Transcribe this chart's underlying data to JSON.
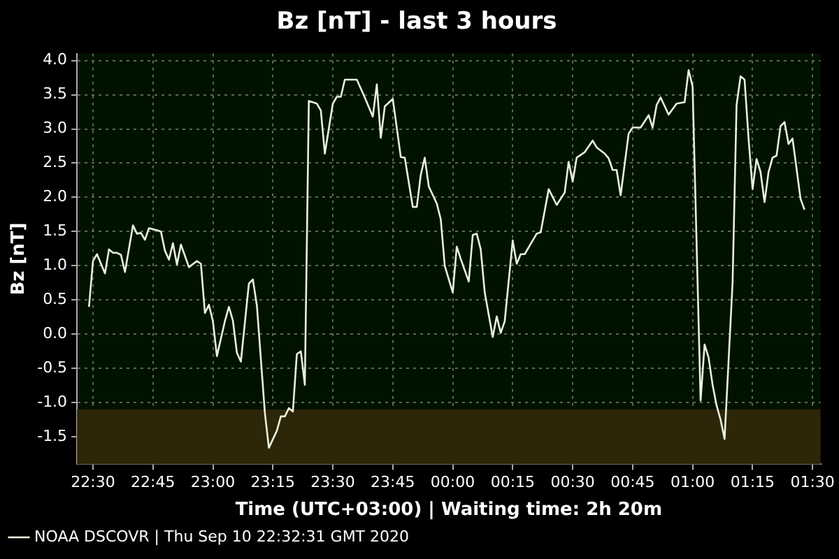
{
  "chart_data": {
    "type": "line",
    "title": "Bz [nT] - last 3 hours",
    "xlabel": "Time (UTC+03:00) | Waiting time: 2h 20m",
    "ylabel": "Bz [nT]",
    "x": [
      "2020-09-10T22:29",
      "2020-09-10T22:30",
      "2020-09-10T22:31",
      "2020-09-10T22:33",
      "2020-09-10T22:34",
      "2020-09-10T22:35",
      "2020-09-10T22:36",
      "2020-09-10T22:37",
      "2020-09-10T22:38",
      "2020-09-10T22:40",
      "2020-09-10T22:41",
      "2020-09-10T22:42",
      "2020-09-10T22:43",
      "2020-09-10T22:44",
      "2020-09-10T22:46",
      "2020-09-10T22:47",
      "2020-09-10T22:48",
      "2020-09-10T22:49",
      "2020-09-10T22:50",
      "2020-09-10T22:51",
      "2020-09-10T22:52",
      "2020-09-10T22:54",
      "2020-09-10T22:56",
      "2020-09-10T22:57",
      "2020-09-10T22:58",
      "2020-09-10T22:59",
      "2020-09-10T23:00",
      "2020-09-10T23:01",
      "2020-09-10T23:03",
      "2020-09-10T23:04",
      "2020-09-10T23:05",
      "2020-09-10T23:06",
      "2020-09-10T23:07",
      "2020-09-10T23:09",
      "2020-09-10T23:10",
      "2020-09-10T23:11",
      "2020-09-10T23:13",
      "2020-09-10T23:14",
      "2020-09-10T23:16",
      "2020-09-10T23:17",
      "2020-09-10T23:18",
      "2020-09-10T23:19",
      "2020-09-10T23:20",
      "2020-09-10T23:21",
      "2020-09-10T23:22",
      "2020-09-10T23:23",
      "2020-09-10T23:24",
      "2020-09-10T23:26",
      "2020-09-10T23:27",
      "2020-09-10T23:28",
      "2020-09-10T23:30",
      "2020-09-10T23:31",
      "2020-09-10T23:32",
      "2020-09-10T23:33",
      "2020-09-10T23:36",
      "2020-09-10T23:38",
      "2020-09-10T23:40",
      "2020-09-10T23:41",
      "2020-09-10T23:42",
      "2020-09-10T23:43",
      "2020-09-10T23:45",
      "2020-09-10T23:47",
      "2020-09-10T23:48",
      "2020-09-10T23:50",
      "2020-09-10T23:51",
      "2020-09-10T23:52",
      "2020-09-10T23:53",
      "2020-09-10T23:54",
      "2020-09-10T23:56",
      "2020-09-10T23:57",
      "2020-09-10T23:58",
      "2020-09-11T00:00",
      "2020-09-11T00:01",
      "2020-09-11T00:02",
      "2020-09-11T00:04",
      "2020-09-11T00:05",
      "2020-09-11T00:06",
      "2020-09-11T00:07",
      "2020-09-11T00:08",
      "2020-09-11T00:10",
      "2020-09-11T00:11",
      "2020-09-11T00:12",
      "2020-09-11T00:13",
      "2020-09-11T00:15",
      "2020-09-11T00:16",
      "2020-09-11T00:17",
      "2020-09-11T00:18",
      "2020-09-11T00:20",
      "2020-09-11T00:21",
      "2020-09-11T00:22",
      "2020-09-11T00:24",
      "2020-09-11T00:26",
      "2020-09-11T00:28",
      "2020-09-11T00:29",
      "2020-09-11T00:30",
      "2020-09-11T00:31",
      "2020-09-11T00:33",
      "2020-09-11T00:35",
      "2020-09-11T00:36",
      "2020-09-11T00:38",
      "2020-09-11T00:39",
      "2020-09-11T00:40",
      "2020-09-11T00:41",
      "2020-09-11T00:42",
      "2020-09-11T00:44",
      "2020-09-11T00:45",
      "2020-09-11T00:47",
      "2020-09-11T00:49",
      "2020-09-11T00:50",
      "2020-09-11T00:51",
      "2020-09-11T00:52",
      "2020-09-11T00:54",
      "2020-09-11T00:56",
      "2020-09-11T00:58",
      "2020-09-11T00:59",
      "2020-09-11T01:00",
      "2020-09-11T01:02",
      "2020-09-11T01:03",
      "2020-09-11T01:04",
      "2020-09-11T01:05",
      "2020-09-11T01:06",
      "2020-09-11T01:07",
      "2020-09-11T01:08",
      "2020-09-11T01:10",
      "2020-09-11T01:11",
      "2020-09-11T01:12",
      "2020-09-11T01:13",
      "2020-09-11T01:14",
      "2020-09-11T01:15",
      "2020-09-11T01:16",
      "2020-09-11T01:17",
      "2020-09-11T01:18",
      "2020-09-11T01:19",
      "2020-09-11T01:20",
      "2020-09-11T01:21",
      "2020-09-11T01:22",
      "2020-09-11T01:23",
      "2020-09-11T01:24",
      "2020-09-11T01:25",
      "2020-09-11T01:27",
      "2020-09-11T01:28"
    ],
    "series": [
      {
        "name": "NOAA DSCOVR | Thu Sep 10 22:32:31 GMT 2020",
        "color": "#e8f0dc",
        "values": [
          0.4,
          1.07,
          1.17,
          0.89,
          1.24,
          1.19,
          1.19,
          1.16,
          0.91,
          1.59,
          1.47,
          1.48,
          1.38,
          1.55,
          1.52,
          1.5,
          1.22,
          1.09,
          1.33,
          1.02,
          1.31,
          0.98,
          1.07,
          1.03,
          0.31,
          0.43,
          0.19,
          -0.32,
          0.19,
          0.4,
          0.2,
          -0.27,
          -0.4,
          0.74,
          0.8,
          0.42,
          -1.15,
          -1.66,
          -1.41,
          -1.2,
          -1.2,
          -1.08,
          -1.13,
          -0.29,
          -0.25,
          -0.74,
          3.41,
          3.37,
          3.27,
          2.64,
          3.37,
          3.47,
          3.47,
          3.72,
          3.72,
          3.46,
          3.18,
          3.65,
          2.87,
          3.33,
          3.44,
          2.59,
          2.58,
          1.86,
          1.86,
          2.33,
          2.58,
          2.16,
          1.91,
          1.68,
          1.0,
          0.61,
          1.28,
          1.1,
          0.77,
          1.45,
          1.47,
          1.24,
          0.61,
          -0.04,
          0.26,
          0.02,
          0.19,
          1.37,
          1.03,
          1.17,
          1.17,
          1.37,
          1.47,
          1.49,
          2.12,
          1.89,
          2.07,
          2.52,
          2.23,
          2.58,
          2.66,
          2.83,
          2.73,
          2.64,
          2.57,
          2.4,
          2.4,
          2.03,
          2.93,
          3.02,
          3.02,
          3.2,
          3.02,
          3.35,
          3.46,
          3.21,
          3.37,
          3.39,
          3.86,
          3.62,
          -0.97,
          -0.15,
          -0.34,
          -0.74,
          -1.04,
          -1.25,
          -1.53,
          0.75,
          3.35,
          3.77,
          3.72,
          2.86,
          2.12,
          2.56,
          2.37,
          1.93,
          2.37,
          2.58,
          2.61,
          3.04,
          3.1,
          2.78,
          2.86,
          1.98,
          1.82
        ]
      }
    ],
    "xlim": [
      "2020-09-10T22:26",
      "2020-09-11T01:32"
    ],
    "xticks": [
      {
        "value": "2020-09-10T22:30",
        "label": "22:30"
      },
      {
        "value": "2020-09-10T22:45",
        "label": "22:45"
      },
      {
        "value": "2020-09-10T23:00",
        "label": "23:00"
      },
      {
        "value": "2020-09-10T23:15",
        "label": "23:15"
      },
      {
        "value": "2020-09-10T23:30",
        "label": "23:30"
      },
      {
        "value": "2020-09-10T23:45",
        "label": "23:45"
      },
      {
        "value": "2020-09-11T00:00",
        "label": "00:00"
      },
      {
        "value": "2020-09-11T00:15",
        "label": "00:15"
      },
      {
        "value": "2020-09-11T00:30",
        "label": "00:30"
      },
      {
        "value": "2020-09-11T00:45",
        "label": "00:45"
      },
      {
        "value": "2020-09-11T01:00",
        "label": "01:00"
      },
      {
        "value": "2020-09-11T01:15",
        "label": "01:15"
      },
      {
        "value": "2020-09-11T01:30",
        "label": "01:30"
      }
    ],
    "ylim": [
      -1.9,
      4.1
    ],
    "yticks": [
      {
        "value": -1.5,
        "label": "-1.5"
      },
      {
        "value": -1,
        "label": "-1.0"
      },
      {
        "value": -0.5,
        "label": "-0.5"
      },
      {
        "value": 0,
        "label": "0.0"
      },
      {
        "value": 0.5,
        "label": "0.5"
      },
      {
        "value": 1,
        "label": "1.0"
      },
      {
        "value": 1.5,
        "label": "1.5"
      },
      {
        "value": 2,
        "label": "2.0"
      },
      {
        "value": 2.5,
        "label": "2.5"
      },
      {
        "value": 3,
        "label": "3.0"
      },
      {
        "value": 3.5,
        "label": "3.5"
      },
      {
        "value": 4,
        "label": "4.0"
      }
    ],
    "bands": [
      {
        "axis": "y",
        "from": -1.9,
        "to": -1.1,
        "color": "#2e2608"
      }
    ],
    "grid": true,
    "legend": "bottom left",
    "marker": "none",
    "line_style": "solid"
  }
}
